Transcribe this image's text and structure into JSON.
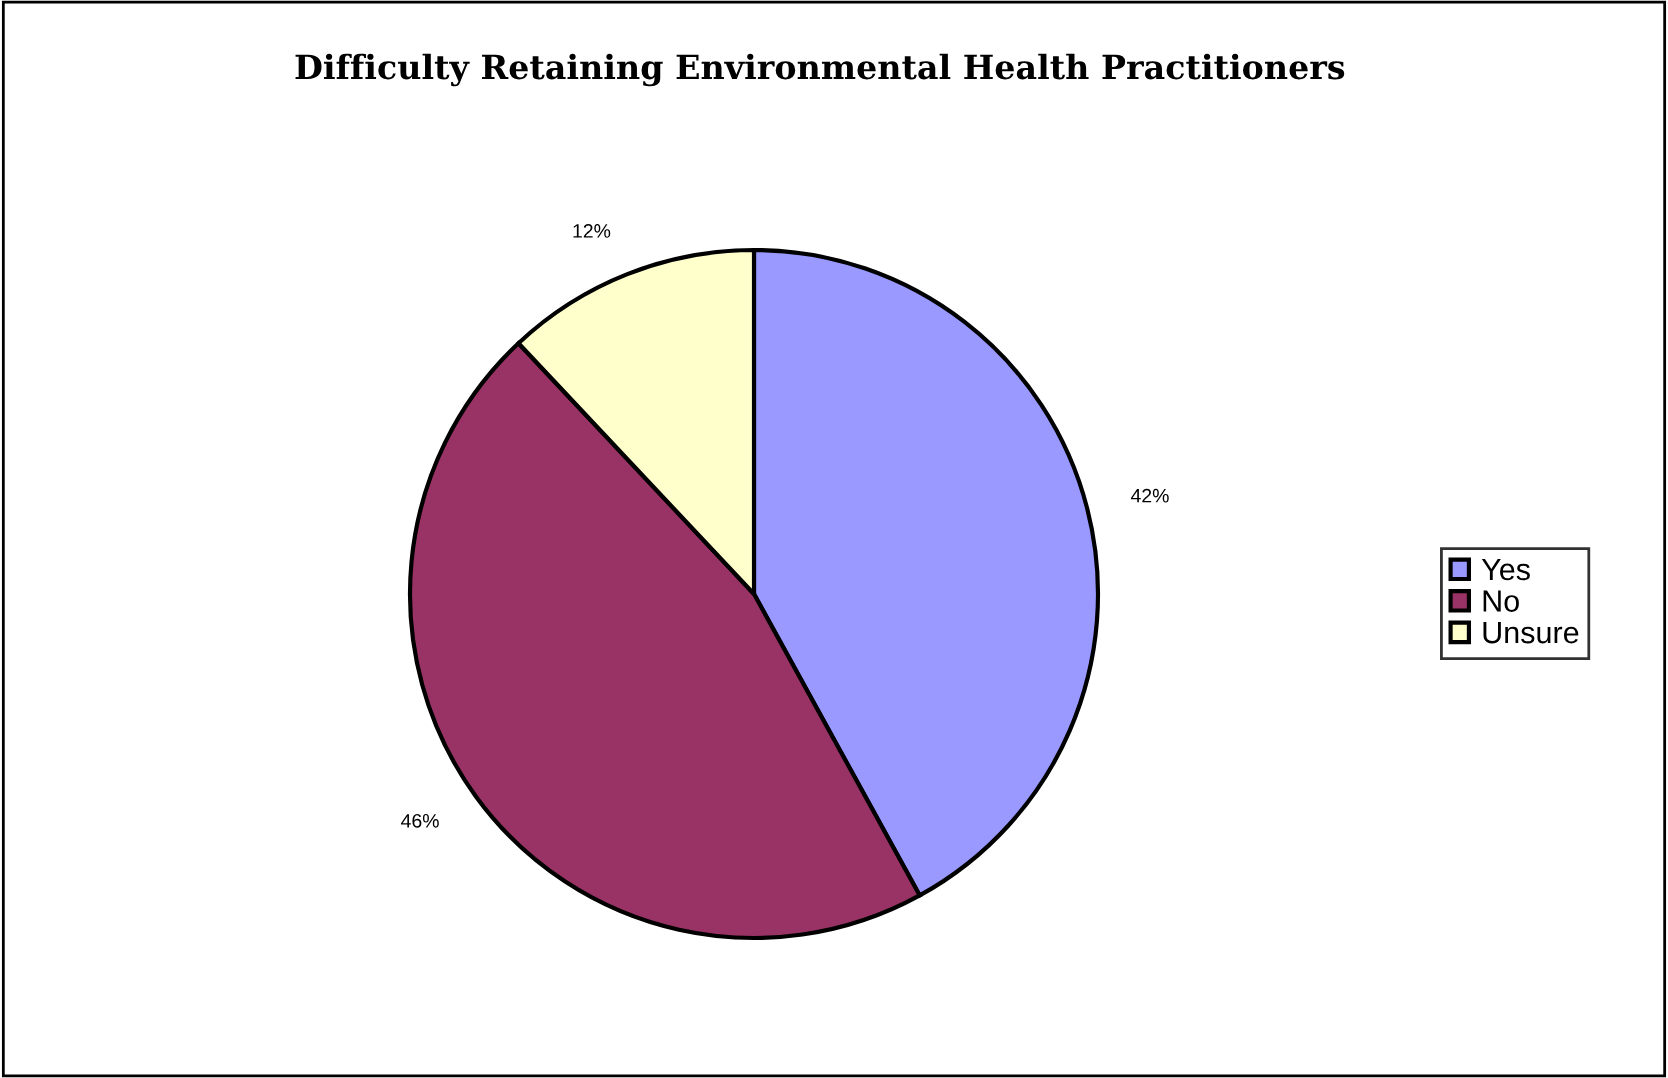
{
  "chart_data": {
    "type": "pie",
    "title": "Difficulty Retaining Environmental Health Practitioners",
    "categories": [
      "Yes",
      "No",
      "Unsure"
    ],
    "values": [
      42,
      46,
      12
    ],
    "colors": [
      "#9999ff",
      "#993366",
      "#ffffcc"
    ],
    "value_labels": [
      "42%",
      "46%",
      "12%"
    ],
    "legend": "right"
  }
}
